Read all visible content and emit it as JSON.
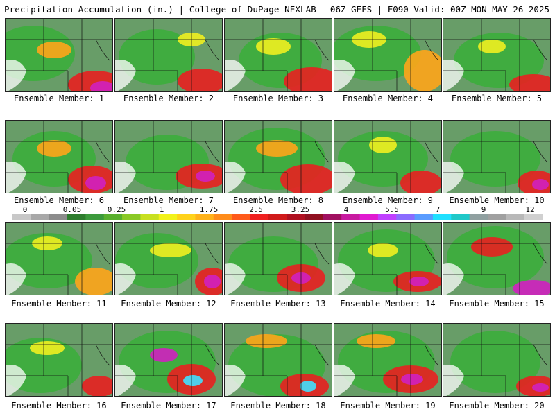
{
  "header": {
    "title_left": "Precipitation Accumulation (in.) | College of DuPage NEXLAB",
    "title_right": "06Z GEFS | F090 Valid: 00Z MON MAY 26 2025"
  },
  "colorbar": {
    "tick_labels": [
      "0",
      "0.05",
      "0.25",
      "1",
      "1.75",
      "2.5",
      "3.25",
      "4",
      "5.5",
      "7",
      "9",
      "12"
    ],
    "colors": [
      "#c8c8c8",
      "#a8a8a8",
      "#8c8c8c",
      "#2e7d2e",
      "#3c9a3c",
      "#59b02e",
      "#8ac926",
      "#c8e020",
      "#f2f21a",
      "#ffd21a",
      "#ffb21a",
      "#ff8c1a",
      "#ff5a1a",
      "#f02020",
      "#d01a1a",
      "#b01020",
      "#901020",
      "#a01060",
      "#c81aa0",
      "#e01ad0",
      "#c040ff",
      "#8a6cff",
      "#5a9cff",
      "#20e0ff",
      "#20c8c8",
      "#90a0a0",
      "#a0a0a0",
      "#b8b8b8",
      "#d0d0d0"
    ]
  },
  "members": [
    {
      "label": "Ensemble Member: 1"
    },
    {
      "label": "Ensemble Member: 2"
    },
    {
      "label": "Ensemble Member: 3"
    },
    {
      "label": "Ensemble Member: 4"
    },
    {
      "label": "Ensemble Member: 5"
    },
    {
      "label": "Ensemble Member: 6"
    },
    {
      "label": "Ensemble Member: 7"
    },
    {
      "label": "Ensemble Member: 8"
    },
    {
      "label": "Ensemble Member: 9"
    },
    {
      "label": "Ensemble Member: 10"
    },
    {
      "label": "Ensemble Member: 11"
    },
    {
      "label": "Ensemble Member: 12"
    },
    {
      "label": "Ensemble Member: 13"
    },
    {
      "label": "Ensemble Member: 14"
    },
    {
      "label": "Ensemble Member: 15"
    },
    {
      "label": "Ensemble Member: 16"
    },
    {
      "label": "Ensemble Member: 17"
    },
    {
      "label": "Ensemble Member: 18"
    },
    {
      "label": "Ensemble Member: 19"
    },
    {
      "label": "Ensemble Member: 20"
    }
  ],
  "colors": {
    "light_green": "#3cae3c",
    "dark_green": "#2a8a2a",
    "yellow": "#f0f020",
    "orange": "#ffa51a",
    "red": "#e82020",
    "magenta": "#d020c0",
    "cyan": "#40e0ff",
    "gray": "#b4b4b4",
    "border": "#222222"
  }
}
